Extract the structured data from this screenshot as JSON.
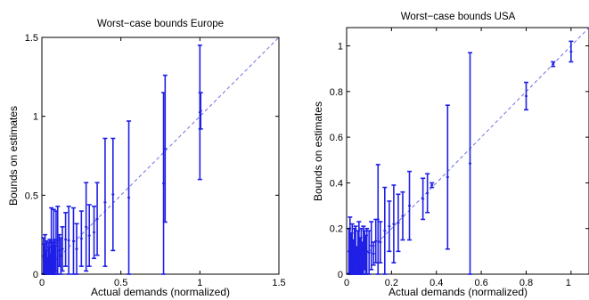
{
  "chart_data": [
    {
      "type": "errorbar",
      "title": "Worst−case bounds Europe",
      "xlabel": "Actual demands (normalized)",
      "ylabel": "Bounds on estimates",
      "xlim": [
        0,
        1.5
      ],
      "ylim": [
        0,
        1.5
      ],
      "xticks": [
        "0",
        "0.5",
        "1",
        "1.5"
      ],
      "yticks": [
        "0",
        "0.5",
        "1",
        "1.5"
      ],
      "xtick_values": [
        0,
        0.5,
        1,
        1.5
      ],
      "ytick_values": [
        0,
        0.5,
        1,
        1.5
      ],
      "grid": false,
      "diagonal": {
        "from": [
          0,
          0
        ],
        "to": [
          1.5,
          1.5
        ],
        "style": "dashed"
      },
      "points": [
        {
          "x": 0.01,
          "lo": 0.0,
          "hi": 0.23
        },
        {
          "x": 0.015,
          "lo": 0.0,
          "hi": 0.19
        },
        {
          "x": 0.02,
          "lo": 0.0,
          "hi": 0.25
        },
        {
          "x": 0.025,
          "lo": 0.0,
          "hi": 0.15
        },
        {
          "x": 0.03,
          "lo": 0.0,
          "hi": 0.21
        },
        {
          "x": 0.035,
          "lo": 0.0,
          "hi": 0.1
        },
        {
          "x": 0.04,
          "lo": 0.0,
          "hi": 0.2
        },
        {
          "x": 0.045,
          "lo": 0.0,
          "hi": 0.17
        },
        {
          "x": 0.05,
          "lo": 0.0,
          "hi": 0.22
        },
        {
          "x": 0.055,
          "lo": 0.0,
          "hi": 0.13
        },
        {
          "x": 0.06,
          "lo": 0.0,
          "hi": 0.42
        },
        {
          "x": 0.065,
          "lo": 0.0,
          "hi": 0.2
        },
        {
          "x": 0.07,
          "lo": 0.0,
          "hi": 0.18
        },
        {
          "x": 0.075,
          "lo": 0.0,
          "hi": 0.41
        },
        {
          "x": 0.08,
          "lo": 0.0,
          "hi": 0.22
        },
        {
          "x": 0.085,
          "lo": 0.02,
          "hi": 0.18
        },
        {
          "x": 0.09,
          "lo": 0.0,
          "hi": 0.4
        },
        {
          "x": 0.1,
          "lo": 0.0,
          "hi": 0.43
        },
        {
          "x": 0.11,
          "lo": 0.05,
          "hi": 0.25
        },
        {
          "x": 0.12,
          "lo": 0.0,
          "hi": 0.23
        },
        {
          "x": 0.13,
          "lo": 0.02,
          "hi": 0.3
        },
        {
          "x": 0.15,
          "lo": 0.05,
          "hi": 0.39
        },
        {
          "x": 0.17,
          "lo": 0.0,
          "hi": 0.43
        },
        {
          "x": 0.2,
          "lo": 0.0,
          "hi": 0.42
        },
        {
          "x": 0.22,
          "lo": 0.0,
          "hi": 0.32
        },
        {
          "x": 0.25,
          "lo": 0.05,
          "hi": 0.4
        },
        {
          "x": 0.28,
          "lo": 0.02,
          "hi": 0.58
        },
        {
          "x": 0.3,
          "lo": 0.05,
          "hi": 0.44
        },
        {
          "x": 0.33,
          "lo": 0.1,
          "hi": 0.43
        },
        {
          "x": 0.35,
          "lo": 0.12,
          "hi": 0.58
        },
        {
          "x": 0.4,
          "lo": 0.05,
          "hi": 0.86
        },
        {
          "x": 0.45,
          "lo": 0.15,
          "hi": 0.86
        },
        {
          "x": 0.55,
          "lo": 0.0,
          "hi": 0.97
        },
        {
          "x": 0.77,
          "lo": 0.0,
          "hi": 1.15
        },
        {
          "x": 0.78,
          "lo": 0.33,
          "hi": 1.26
        },
        {
          "x": 1.0,
          "lo": 0.6,
          "hi": 1.45
        },
        {
          "x": 1.005,
          "lo": 0.92,
          "hi": 1.15
        }
      ]
    },
    {
      "type": "errorbar",
      "title": "Worst−case bounds USA",
      "xlabel": "Actual demands (normalized)",
      "ylabel": "Bounds on estimates",
      "xlim": [
        0,
        1.08
      ],
      "ylim": [
        0,
        1.08
      ],
      "xticks": [
        "0",
        "0.2",
        "0.4",
        "0.6",
        "0.8",
        "1"
      ],
      "yticks": [
        "0",
        "0.2",
        "0.4",
        "0.6",
        "0.8",
        "1"
      ],
      "xtick_values": [
        0,
        0.2,
        0.4,
        0.6,
        0.8,
        1
      ],
      "ytick_values": [
        0,
        0.2,
        0.4,
        0.6,
        0.8,
        1
      ],
      "grid": false,
      "diagonal": {
        "from": [
          0,
          0
        ],
        "to": [
          1.08,
          1.08
        ],
        "style": "dashed"
      },
      "points": [
        {
          "x": 0.01,
          "lo": 0.0,
          "hi": 0.2
        },
        {
          "x": 0.015,
          "lo": 0.0,
          "hi": 0.25
        },
        {
          "x": 0.02,
          "lo": 0.0,
          "hi": 0.18
        },
        {
          "x": 0.025,
          "lo": 0.0,
          "hi": 0.22
        },
        {
          "x": 0.03,
          "lo": 0.0,
          "hi": 0.15
        },
        {
          "x": 0.035,
          "lo": 0.0,
          "hi": 0.2
        },
        {
          "x": 0.04,
          "lo": 0.0,
          "hi": 0.21
        },
        {
          "x": 0.045,
          "lo": 0.0,
          "hi": 0.12
        },
        {
          "x": 0.05,
          "lo": 0.0,
          "hi": 0.19
        },
        {
          "x": 0.055,
          "lo": 0.0,
          "hi": 0.23
        },
        {
          "x": 0.06,
          "lo": 0.0,
          "hi": 0.16
        },
        {
          "x": 0.065,
          "lo": 0.0,
          "hi": 0.2
        },
        {
          "x": 0.07,
          "lo": 0.0,
          "hi": 0.14
        },
        {
          "x": 0.075,
          "lo": 0.0,
          "hi": 0.21
        },
        {
          "x": 0.08,
          "lo": 0.02,
          "hi": 0.19
        },
        {
          "x": 0.085,
          "lo": 0.0,
          "hi": 0.17
        },
        {
          "x": 0.09,
          "lo": 0.0,
          "hi": 0.2
        },
        {
          "x": 0.1,
          "lo": 0.0,
          "hi": 0.19
        },
        {
          "x": 0.11,
          "lo": 0.02,
          "hi": 0.23
        },
        {
          "x": 0.12,
          "lo": 0.04,
          "hi": 0.14
        },
        {
          "x": 0.13,
          "lo": 0.05,
          "hi": 0.24
        },
        {
          "x": 0.14,
          "lo": 0.0,
          "hi": 0.48
        },
        {
          "x": 0.15,
          "lo": 0.05,
          "hi": 0.23
        },
        {
          "x": 0.17,
          "lo": 0.0,
          "hi": 0.38
        },
        {
          "x": 0.19,
          "lo": 0.1,
          "hi": 0.32
        },
        {
          "x": 0.21,
          "lo": 0.05,
          "hi": 0.39
        },
        {
          "x": 0.23,
          "lo": 0.1,
          "hi": 0.35
        },
        {
          "x": 0.25,
          "lo": 0.15,
          "hi": 0.36
        },
        {
          "x": 0.28,
          "lo": 0.15,
          "hi": 0.45
        },
        {
          "x": 0.34,
          "lo": 0.24,
          "hi": 0.42
        },
        {
          "x": 0.36,
          "lo": 0.27,
          "hi": 0.44
        },
        {
          "x": 0.38,
          "lo": 0.38,
          "hi": 0.4
        },
        {
          "x": 0.45,
          "lo": 0.11,
          "hi": 0.74
        },
        {
          "x": 0.55,
          "lo": 0.0,
          "hi": 0.97
        },
        {
          "x": 0.8,
          "lo": 0.72,
          "hi": 0.84
        },
        {
          "x": 0.92,
          "lo": 0.91,
          "hi": 0.93
        },
        {
          "x": 1.0,
          "lo": 0.93,
          "hi": 1.02
        }
      ]
    }
  ],
  "colors": {
    "series": "#1f1fe6",
    "diagonal": "#6f6fe6",
    "axis": "#000000",
    "background": "#ffffff"
  }
}
